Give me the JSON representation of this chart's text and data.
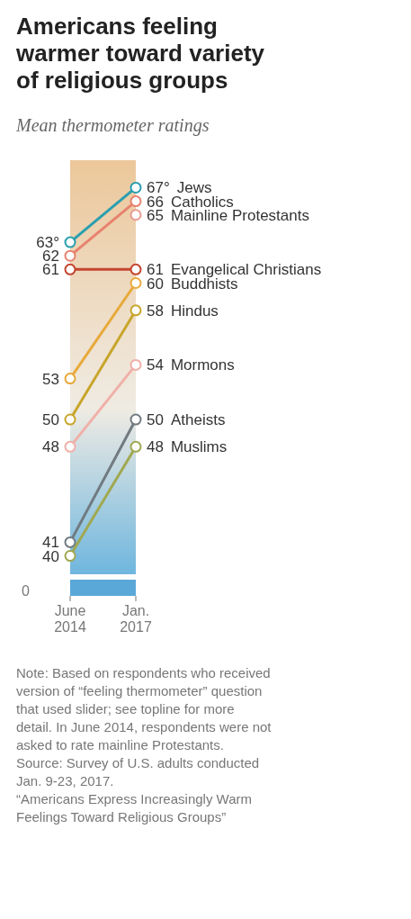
{
  "chart_data": {
    "type": "line",
    "title": "Americans feeling warmer toward variety of religious groups",
    "subtitle": "Mean thermometer ratings",
    "categories": [
      "June 2014",
      "Jan. 2017"
    ],
    "tick_labels": "x",
    "marker": "circle",
    "line_style": "solid",
    "series": [
      {
        "name": "Jews",
        "color": "#2a9fb0",
        "values": [
          63,
          67
        ],
        "value_labels": [
          "63°",
          "67°"
        ]
      },
      {
        "name": "Catholics",
        "color": "#e8826f",
        "values": [
          62,
          66
        ],
        "value_labels": [
          "62",
          "66"
        ]
      },
      {
        "name": "Mainline Protestants",
        "color": "#e89a90",
        "values": [
          null,
          65
        ],
        "value_labels": [
          null,
          "65"
        ]
      },
      {
        "name": "Evangelical Christians",
        "color": "#c4452f",
        "values": [
          61,
          61
        ],
        "value_labels": [
          "61",
          "61"
        ]
      },
      {
        "name": "Buddhists",
        "color": "#e8a93a",
        "values": [
          53,
          60
        ],
        "value_labels": [
          "53",
          "60"
        ]
      },
      {
        "name": "Hindus",
        "color": "#c8a52a",
        "values": [
          50,
          58
        ],
        "value_labels": [
          "50",
          "58"
        ]
      },
      {
        "name": "Mormons",
        "color": "#f0b0a8",
        "values": [
          48,
          54
        ],
        "value_labels": [
          "48",
          "54"
        ]
      },
      {
        "name": "Atheists",
        "color": "#707a80",
        "values": [
          41,
          50
        ],
        "value_labels": [
          "41",
          "50"
        ]
      },
      {
        "name": "Muslims",
        "color": "#a0a850",
        "values": [
          40,
          48
        ],
        "value_labels": [
          "40",
          "48"
        ]
      }
    ],
    "annotations": [
      "0",
      "Note: Based on respondents who received version of “feeling thermometer” question that used slider; see topline for more detail. In June 2014, respondents were not asked to rate mainline Protestants.",
      "Source: Survey of U.S. adults conducted Jan. 9-23, 2017.",
      "“Americans Express Increasingly Warm Feelings Toward Religious Groups”"
    ]
  }
}
